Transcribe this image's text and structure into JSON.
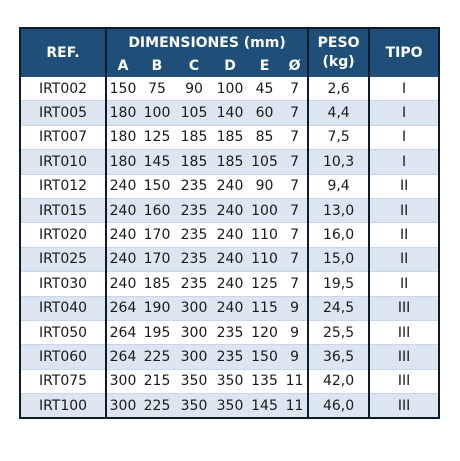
{
  "table": {
    "headers": {
      "ref": "REF.",
      "dimensions": "DIMENSIONES (mm)",
      "dim_cols": [
        "A",
        "B",
        "C",
        "D",
        "E",
        "Ø"
      ],
      "peso_line1": "PESO",
      "peso_line2": "(kg)",
      "tipo": "TIPO"
    },
    "rows": [
      {
        "ref": "IRT002",
        "a": "150",
        "b": "75",
        "c": "90",
        "d": "100",
        "e": "45",
        "phi": "7",
        "peso": "2,6",
        "tipo": "I"
      },
      {
        "ref": "IRT005",
        "a": "180",
        "b": "100",
        "c": "105",
        "d": "140",
        "e": "60",
        "phi": "7",
        "peso": "4,4",
        "tipo": "I"
      },
      {
        "ref": "IRT007",
        "a": "180",
        "b": "125",
        "c": "185",
        "d": "185",
        "e": "85",
        "phi": "7",
        "peso": "7,5",
        "tipo": "I"
      },
      {
        "ref": "IRT010",
        "a": "180",
        "b": "145",
        "c": "185",
        "d": "185",
        "e": "105",
        "phi": "7",
        "peso": "10,3",
        "tipo": "I"
      },
      {
        "ref": "IRT012",
        "a": "240",
        "b": "150",
        "c": "235",
        "d": "240",
        "e": "90",
        "phi": "7",
        "peso": "9,4",
        "tipo": "II"
      },
      {
        "ref": "IRT015",
        "a": "240",
        "b": "160",
        "c": "235",
        "d": "240",
        "e": "100",
        "phi": "7",
        "peso": "13,0",
        "tipo": "II"
      },
      {
        "ref": "IRT020",
        "a": "240",
        "b": "170",
        "c": "235",
        "d": "240",
        "e": "110",
        "phi": "7",
        "peso": "16,0",
        "tipo": "II"
      },
      {
        "ref": "IRT025",
        "a": "240",
        "b": "170",
        "c": "235",
        "d": "240",
        "e": "110",
        "phi": "7",
        "peso": "15,0",
        "tipo": "II"
      },
      {
        "ref": "IRT030",
        "a": "240",
        "b": "185",
        "c": "235",
        "d": "240",
        "e": "125",
        "phi": "7",
        "peso": "19,5",
        "tipo": "II"
      },
      {
        "ref": "IRT040",
        "a": "264",
        "b": "190",
        "c": "300",
        "d": "240",
        "e": "115",
        "phi": "9",
        "peso": "24,5",
        "tipo": "III"
      },
      {
        "ref": "IRT050",
        "a": "264",
        "b": "195",
        "c": "300",
        "d": "235",
        "e": "120",
        "phi": "9",
        "peso": "25,5",
        "tipo": "III"
      },
      {
        "ref": "IRT060",
        "a": "264",
        "b": "225",
        "c": "300",
        "d": "235",
        "e": "150",
        "phi": "9",
        "peso": "36,5",
        "tipo": "III"
      },
      {
        "ref": "IRT075",
        "a": "300",
        "b": "215",
        "c": "350",
        "d": "350",
        "e": "135",
        "phi": "11",
        "peso": "42,0",
        "tipo": "III"
      },
      {
        "ref": "IRT100",
        "a": "300",
        "b": "225",
        "c": "350",
        "d": "350",
        "e": "145",
        "phi": "11",
        "peso": "46,0",
        "tipo": "III"
      }
    ]
  },
  "colors": {
    "header_bg": "#1f4e79",
    "header_text": "#ffffff",
    "stripe": "#dce6f1",
    "border": "#0d1b2a"
  }
}
